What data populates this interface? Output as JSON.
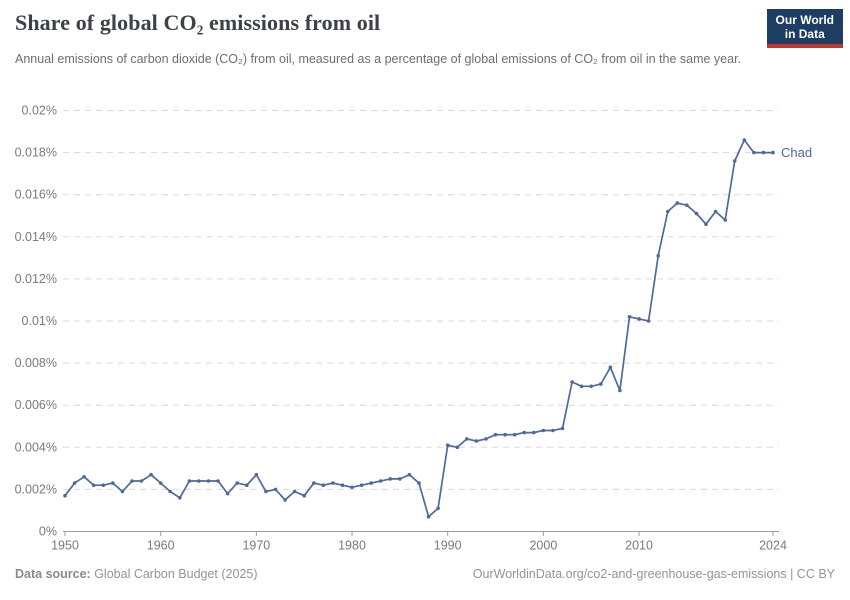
{
  "header": {
    "title": "Share of global CO₂ emissions from oil",
    "logo": {
      "line1": "Our World",
      "line2": "in Data",
      "navy": "#1d3d63",
      "red": "#c0362c"
    }
  },
  "subtitle": "Annual emissions of carbon dioxide (CO₂) from oil, measured as a percentage of global emissions of CO₂ from oil in the same year.",
  "chart_data": {
    "type": "line",
    "title": "Share of global CO₂ emissions from oil",
    "xlabel": "",
    "ylabel": "",
    "xlim": [
      1950,
      2024
    ],
    "ylim": [
      0,
      0.02
    ],
    "grid": "horizontal-dashed",
    "legend_position": "end-of-line-label",
    "line_color": "#4c6a9c",
    "series": [
      {
        "name": "Chad",
        "points": [
          [
            1950,
            0.0017
          ],
          [
            1951,
            0.0023
          ],
          [
            1952,
            0.0026
          ],
          [
            1953,
            0.0022
          ],
          [
            1954,
            0.0022
          ],
          [
            1955,
            0.0023
          ],
          [
            1956,
            0.0019
          ],
          [
            1957,
            0.0024
          ],
          [
            1958,
            0.0024
          ],
          [
            1959,
            0.0027
          ],
          [
            1960,
            0.0023
          ],
          [
            1961,
            0.0019
          ],
          [
            1962,
            0.0016
          ],
          [
            1963,
            0.0024
          ],
          [
            1964,
            0.0024
          ],
          [
            1965,
            0.0024
          ],
          [
            1966,
            0.0024
          ],
          [
            1967,
            0.0018
          ],
          [
            1968,
            0.0023
          ],
          [
            1969,
            0.0022
          ],
          [
            1970,
            0.0027
          ],
          [
            1971,
            0.0019
          ],
          [
            1972,
            0.002
          ],
          [
            1973,
            0.0015
          ],
          [
            1974,
            0.0019
          ],
          [
            1975,
            0.0017
          ],
          [
            1976,
            0.0023
          ],
          [
            1977,
            0.0022
          ],
          [
            1978,
            0.0023
          ],
          [
            1979,
            0.0022
          ],
          [
            1980,
            0.0021
          ],
          [
            1981,
            0.0022
          ],
          [
            1982,
            0.0023
          ],
          [
            1983,
            0.0024
          ],
          [
            1984,
            0.0025
          ],
          [
            1985,
            0.0025
          ],
          [
            1986,
            0.0027
          ],
          [
            1987,
            0.0023
          ],
          [
            1988,
            0.0007
          ],
          [
            1989,
            0.0011
          ],
          [
            1990,
            0.0041
          ],
          [
            1991,
            0.004
          ],
          [
            1992,
            0.0044
          ],
          [
            1993,
            0.0043
          ],
          [
            1994,
            0.0044
          ],
          [
            1995,
            0.0046
          ],
          [
            1996,
            0.0046
          ],
          [
            1997,
            0.0046
          ],
          [
            1998,
            0.0047
          ],
          [
            1999,
            0.0047
          ],
          [
            2000,
            0.0048
          ],
          [
            2001,
            0.0048
          ],
          [
            2002,
            0.0049
          ],
          [
            2003,
            0.0071
          ],
          [
            2004,
            0.0069
          ],
          [
            2005,
            0.0069
          ],
          [
            2006,
            0.007
          ],
          [
            2007,
            0.0078
          ],
          [
            2008,
            0.0067
          ],
          [
            2009,
            0.0102
          ],
          [
            2010,
            0.0101
          ],
          [
            2011,
            0.01
          ],
          [
            2012,
            0.0131
          ],
          [
            2013,
            0.0152
          ],
          [
            2014,
            0.0156
          ],
          [
            2015,
            0.0155
          ],
          [
            2016,
            0.0151
          ],
          [
            2017,
            0.0146
          ],
          [
            2018,
            0.0152
          ],
          [
            2019,
            0.0148
          ],
          [
            2020,
            0.0176
          ],
          [
            2021,
            0.0186
          ],
          [
            2022,
            0.018
          ],
          [
            2023,
            0.018
          ],
          [
            2024,
            0.018
          ]
        ]
      }
    ],
    "y_ticks": [
      {
        "v": 0,
        "label": "0%"
      },
      {
        "v": 0.002,
        "label": "0.002%"
      },
      {
        "v": 0.004,
        "label": "0.004%"
      },
      {
        "v": 0.006,
        "label": "0.006%"
      },
      {
        "v": 0.008,
        "label": "0.008%"
      },
      {
        "v": 0.01,
        "label": "0.01%"
      },
      {
        "v": 0.012,
        "label": "0.012%"
      },
      {
        "v": 0.014,
        "label": "0.014%"
      },
      {
        "v": 0.016,
        "label": "0.016%"
      },
      {
        "v": 0.018,
        "label": "0.018%"
      },
      {
        "v": 0.02,
        "label": "0.02%"
      }
    ],
    "x_ticks": [
      {
        "v": 1950,
        "label": "1950"
      },
      {
        "v": 1960,
        "label": "1960"
      },
      {
        "v": 1970,
        "label": "1970"
      },
      {
        "v": 1980,
        "label": "1980"
      },
      {
        "v": 1990,
        "label": "1990"
      },
      {
        "v": 2000,
        "label": "2000"
      },
      {
        "v": 2010,
        "label": "2010"
      },
      {
        "v": 2024,
        "label": "2024"
      }
    ],
    "end_label": "Chad"
  },
  "footer": {
    "source_label": "Data source:",
    "source_value": " Global Carbon Budget (2025)",
    "credit": "OurWorldinData.org/co2-and-greenhouse-gas-emissions | CC BY"
  },
  "colors": {
    "accent_line": "#4c6a9c",
    "grid": "#dadada",
    "axis": "#9e9e9e",
    "tick_text": "#7a7a7a",
    "title_text": "#3d4248",
    "subtitle_text": "#6e6e6e",
    "footer_text": "#949494"
  }
}
